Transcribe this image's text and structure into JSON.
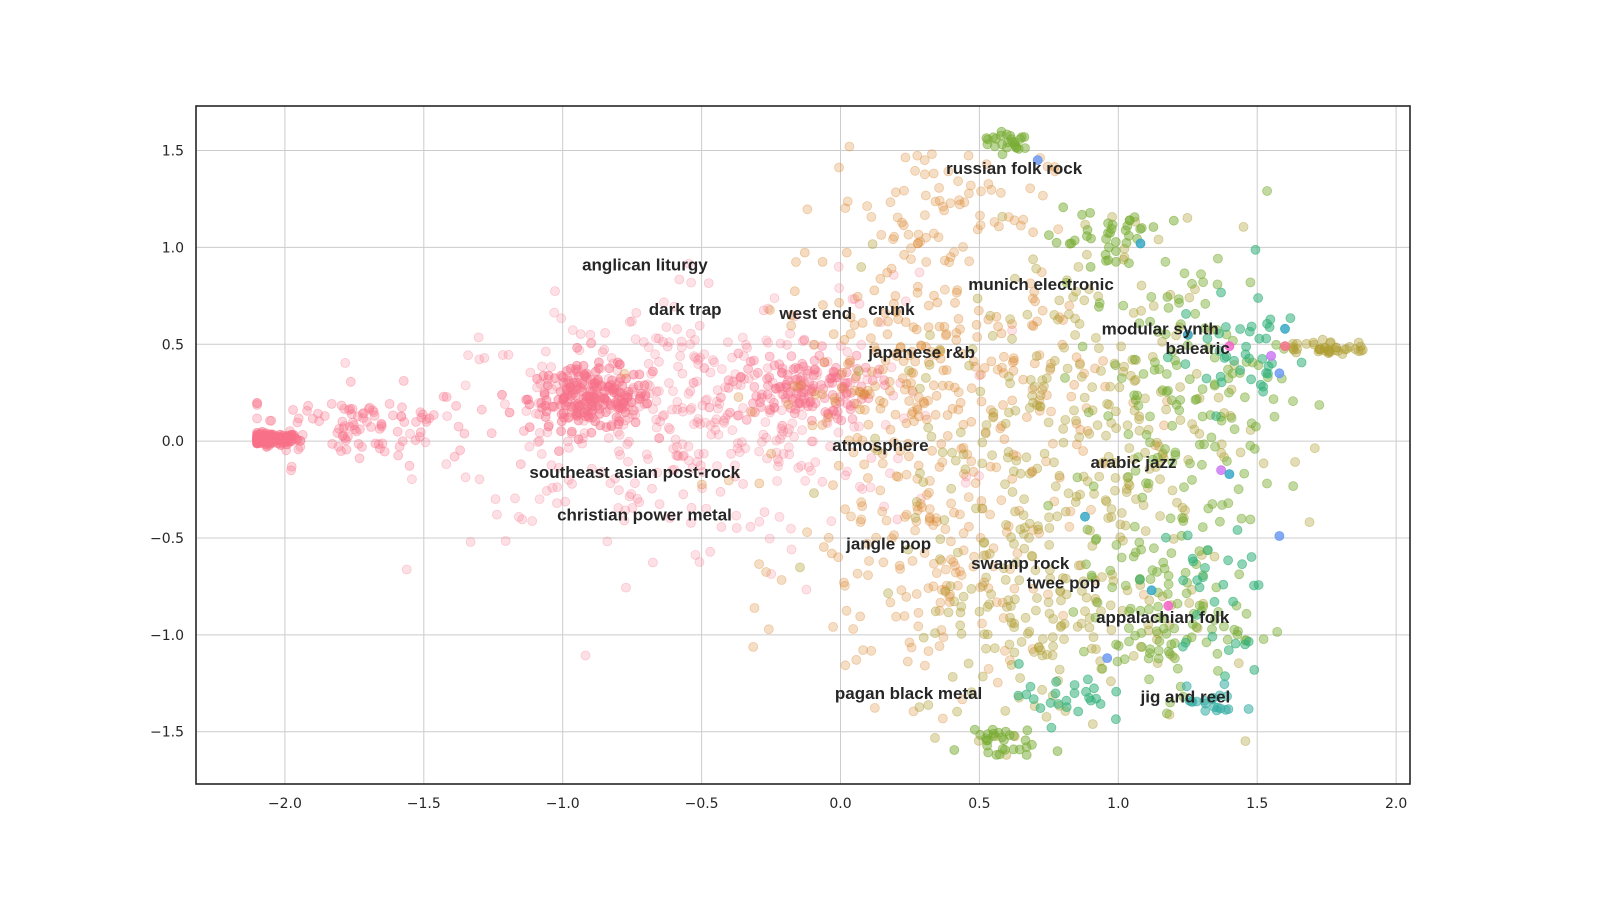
{
  "chart_data": {
    "type": "scatter",
    "title": "",
    "xlabel": "",
    "ylabel": "",
    "xlim": [
      -2.32,
      2.05
    ],
    "ylim": [
      -1.77,
      1.73
    ],
    "grid": true,
    "legend": "none",
    "x_ticks": [
      -2.0,
      -1.5,
      -1.0,
      -0.5,
      0.0,
      0.5,
      1.0,
      1.5,
      2.0
    ],
    "y_ticks": [
      -1.5,
      -1.0,
      -0.5,
      0.0,
      0.5,
      1.0,
      1.5
    ],
    "x_tick_labels": [
      "−2.0",
      "−1.5",
      "−1.0",
      "−0.5",
      "0.0",
      "0.5",
      "1.0",
      "1.5",
      "2.0"
    ],
    "y_tick_labels": [
      "−1.5",
      "−1.0",
      "−0.5",
      "0.0",
      "0.5",
      "1.0",
      "1.5"
    ],
    "colors": {
      "pink": "#f77189",
      "orange": "#dc8932",
      "olive": "#ae9d31",
      "green": "#77ab31",
      "teal": "#33b07a",
      "cyan": "#36ada4",
      "blue": "#38a9c5",
      "indigo": "#6e9bf4",
      "purple": "#cc7af4",
      "magenta": "#f565cc"
    },
    "point_clusters": [
      {
        "name": "",
        "color": "pink",
        "alpha": 0.55,
        "n": 120,
        "cx": -2.05,
        "cy": 0.01,
        "sx": 0.05,
        "sy": 0.015
      },
      {
        "name": "",
        "color": "pink",
        "alpha": 0.3,
        "n": 110,
        "cx": -1.75,
        "cy": 0.08,
        "sx": 0.22,
        "sy": 0.1
      },
      {
        "name": "",
        "color": "pink",
        "alpha": 0.45,
        "n": 190,
        "cx": -0.9,
        "cy": 0.22,
        "sx": 0.11,
        "sy": 0.08
      },
      {
        "name": "",
        "color": "pink",
        "alpha": 0.22,
        "n": 260,
        "cx": -0.7,
        "cy": 0.1,
        "sx": 0.38,
        "sy": 0.3
      },
      {
        "name": "",
        "color": "pink",
        "alpha": 0.35,
        "n": 150,
        "cx": -0.15,
        "cy": 0.28,
        "sx": 0.13,
        "sy": 0.09
      },
      {
        "name": "",
        "color": "pink",
        "alpha": 0.2,
        "n": 170,
        "cx": -0.3,
        "cy": 0.15,
        "sx": 0.35,
        "sy": 0.35
      },
      {
        "name": "",
        "color": "orange",
        "alpha": 0.3,
        "n": 260,
        "cx": 0.35,
        "cy": 0.3,
        "sx": 0.3,
        "sy": 0.3
      },
      {
        "name": "",
        "color": "orange",
        "alpha": 0.28,
        "n": 160,
        "cx": 0.35,
        "cy": -0.65,
        "sx": 0.25,
        "sy": 0.35
      },
      {
        "name": "",
        "color": "orange",
        "alpha": 0.28,
        "n": 80,
        "cx": 0.35,
        "cy": 1.2,
        "sx": 0.2,
        "sy": 0.18
      },
      {
        "name": "",
        "color": "olive",
        "alpha": 0.35,
        "n": 260,
        "cx": 0.85,
        "cy": 0.1,
        "sx": 0.3,
        "sy": 0.5
      },
      {
        "name": "",
        "color": "olive",
        "alpha": 0.35,
        "n": 150,
        "cx": 0.75,
        "cy": -0.9,
        "sx": 0.25,
        "sy": 0.3
      },
      {
        "name": "",
        "color": "green",
        "alpha": 0.45,
        "n": 140,
        "cx": 1.25,
        "cy": 0.2,
        "sx": 0.18,
        "sy": 0.4
      },
      {
        "name": "",
        "color": "green",
        "alpha": 0.45,
        "n": 100,
        "cx": 1.15,
        "cy": -0.9,
        "sx": 0.15,
        "sy": 0.2
      },
      {
        "name": "",
        "color": "green",
        "alpha": 0.5,
        "n": 40,
        "cx": 0.95,
        "cy": 1.05,
        "sx": 0.1,
        "sy": 0.12
      },
      {
        "name": "",
        "color": "green",
        "alpha": 0.5,
        "n": 30,
        "cx": 0.55,
        "cy": -1.55,
        "sx": 0.07,
        "sy": 0.05
      },
      {
        "name": "",
        "color": "green",
        "alpha": 0.5,
        "n": 25,
        "cx": 0.6,
        "cy": 1.55,
        "sx": 0.05,
        "sy": 0.03
      },
      {
        "name": "",
        "color": "teal",
        "alpha": 0.55,
        "n": 40,
        "cx": 1.45,
        "cy": 0.45,
        "sx": 0.12,
        "sy": 0.15
      },
      {
        "name": "",
        "color": "teal",
        "alpha": 0.55,
        "n": 30,
        "cx": 1.3,
        "cy": -0.85,
        "sx": 0.12,
        "sy": 0.2
      },
      {
        "name": "",
        "color": "cyan",
        "alpha": 0.55,
        "n": 20,
        "cx": 1.35,
        "cy": -1.35,
        "sx": 0.05,
        "sy": 0.04
      },
      {
        "name": "",
        "color": "teal",
        "alpha": 0.55,
        "n": 25,
        "cx": 0.8,
        "cy": -1.3,
        "sx": 0.08,
        "sy": 0.08
      },
      {
        "name": "",
        "color": "olive",
        "alpha": 0.4,
        "n": 40,
        "cx": 1.75,
        "cy": 0.48,
        "sx": 0.08,
        "sy": 0.02
      }
    ],
    "highlight_points": [
      {
        "x": 0.71,
        "y": 1.45,
        "color": "indigo"
      },
      {
        "x": 1.08,
        "y": 1.02,
        "color": "blue"
      },
      {
        "x": 0.88,
        "y": -0.39,
        "color": "blue"
      },
      {
        "x": 0.96,
        "y": -1.12,
        "color": "indigo"
      },
      {
        "x": 1.37,
        "y": -0.15,
        "color": "purple"
      },
      {
        "x": 1.4,
        "y": -0.17,
        "color": "blue"
      },
      {
        "x": 1.12,
        "y": -0.77,
        "color": "blue"
      },
      {
        "x": 1.18,
        "y": -0.85,
        "color": "magenta"
      },
      {
        "x": 1.55,
        "y": 0.44,
        "color": "purple"
      },
      {
        "x": 1.58,
        "y": 0.35,
        "color": "indigo"
      },
      {
        "x": 1.6,
        "y": 0.49,
        "color": "pink"
      },
      {
        "x": 1.4,
        "y": 0.49,
        "color": "magenta"
      },
      {
        "x": 1.58,
        "y": -0.49,
        "color": "indigo"
      },
      {
        "x": 1.6,
        "y": 0.58,
        "color": "blue"
      },
      {
        "x": 1.25,
        "y": 0.55,
        "color": "blue"
      }
    ],
    "annotations": [
      {
        "text": "russian folk rock",
        "x": 0.38,
        "y": 1.38
      },
      {
        "text": "anglican liturgy",
        "x": -0.93,
        "y": 0.88
      },
      {
        "text": "munich electronic",
        "x": 0.46,
        "y": 0.78
      },
      {
        "text": "dark trap",
        "x": -0.69,
        "y": 0.65
      },
      {
        "text": "west end",
        "x": -0.22,
        "y": 0.63
      },
      {
        "text": "crunk",
        "x": 0.1,
        "y": 0.65
      },
      {
        "text": "modular synth",
        "x": 0.94,
        "y": 0.55
      },
      {
        "text": "balearic",
        "x": 1.17,
        "y": 0.45
      },
      {
        "text": "japanese r&b",
        "x": 0.1,
        "y": 0.43
      },
      {
        "text": "atmosphere",
        "x": -0.03,
        "y": -0.05
      },
      {
        "text": "arabic jazz",
        "x": 0.9,
        "y": -0.14
      },
      {
        "text": "southeast asian post-rock",
        "x": -1.12,
        "y": -0.19
      },
      {
        "text": "christian power metal",
        "x": -1.02,
        "y": -0.41
      },
      {
        "text": "jangle pop",
        "x": 0.02,
        "y": -0.56
      },
      {
        "text": "swamp rock",
        "x": 0.47,
        "y": -0.66
      },
      {
        "text": "twee pop",
        "x": 0.67,
        "y": -0.76
      },
      {
        "text": "appalachian folk",
        "x": 0.92,
        "y": -0.94
      },
      {
        "text": "pagan black metal",
        "x": -0.02,
        "y": -1.33
      },
      {
        "text": "jig and reel",
        "x": 1.08,
        "y": -1.35
      }
    ]
  }
}
